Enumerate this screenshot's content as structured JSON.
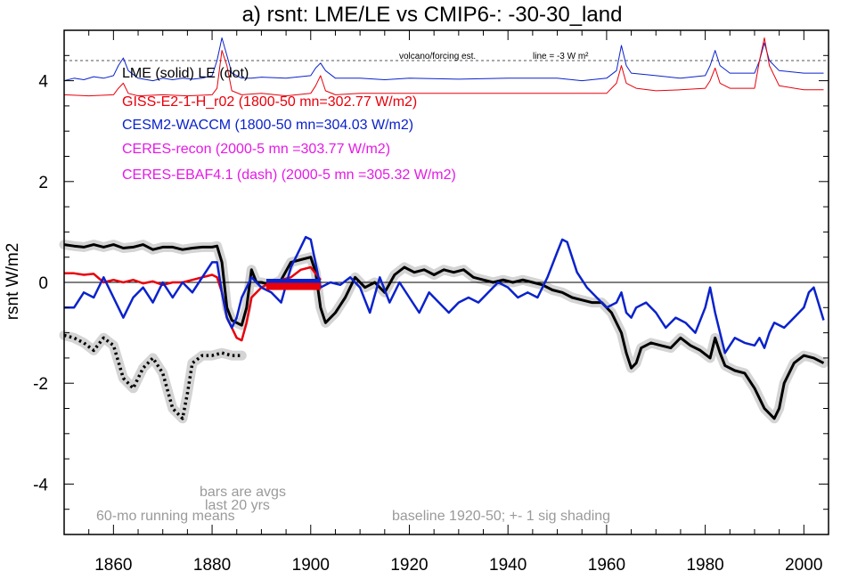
{
  "chart_data": {
    "type": "line",
    "title": "a) rsnt: LME/LE vs CMIP6-: -30-30_land",
    "ylabel": "rsnt W/m2",
    "xlim": [
      1850,
      2005
    ],
    "ylim": [
      -5,
      5
    ],
    "xticks": [
      1860,
      1880,
      1900,
      1920,
      1940,
      1960,
      1980,
      2000
    ],
    "yticks": [
      4,
      2,
      0,
      -2,
      -4
    ],
    "zero_line": 0,
    "dashed_line_y": 4.4,
    "legend": [
      {
        "text": "LME (solid)   LE (dot)",
        "color": "#000000"
      },
      {
        "text": "GISS-E2-1-H_r02 (1800-50 mn=302.77 W/m2)",
        "color": "#e8000b"
      },
      {
        "text": "CESM2-WACCM (1800-50 mn=304.03 W/m2)",
        "color": "#0a22cc"
      },
      {
        "text": "CERES-recon (2000-5 mn =303.77 W/m2)",
        "color": "#e619e6"
      },
      {
        "text": "CERES-EBAF4.1 (dash) (2000-5 mn =305.32 W/m2)",
        "color": "#e619e6"
      }
    ],
    "annotations": {
      "volcano": "volcano/forcing est.",
      "line_scale": "line = -3 W m²",
      "bars1": "bars are avgs",
      "bars2": "last 20 yrs",
      "running": "60-mo running means",
      "baseline": "baseline 1920-50; +- 1 sig shading"
    },
    "series": [
      {
        "name": "LME (solid)",
        "color": "#000000",
        "width": 3,
        "shade": true,
        "x": [
          1850,
          1852,
          1854,
          1856,
          1858,
          1860,
          1862,
          1864,
          1866,
          1868,
          1870,
          1872,
          1874,
          1876,
          1878,
          1880,
          1881,
          1882,
          1883,
          1884,
          1885,
          1886,
          1887,
          1888,
          1889,
          1890,
          1892,
          1894,
          1896,
          1898,
          1900,
          1901,
          1902,
          1903,
          1905,
          1907,
          1909,
          1911,
          1913,
          1915,
          1917,
          1919,
          1921,
          1923,
          1925,
          1927,
          1929,
          1931,
          1933,
          1935,
          1937,
          1939,
          1941,
          1943,
          1945,
          1947,
          1949,
          1951,
          1953,
          1955,
          1957,
          1959,
          1961,
          1963,
          1964,
          1965,
          1966,
          1967,
          1969,
          1971,
          1973,
          1975,
          1977,
          1979,
          1981,
          1982,
          1983,
          1984,
          1986,
          1988,
          1990,
          1991,
          1992,
          1993,
          1994,
          1995,
          1996,
          1998,
          2000,
          2002,
          2004
        ],
        "y": [
          0.75,
          0.72,
          0.7,
          0.75,
          0.7,
          0.75,
          0.68,
          0.7,
          0.75,
          0.65,
          0.7,
          0.7,
          0.65,
          0.68,
          0.7,
          0.7,
          0.72,
          0.4,
          -0.5,
          -0.75,
          -0.8,
          -0.85,
          -0.5,
          0.25,
          0.0,
          0.0,
          -0.05,
          0.05,
          0.4,
          0.45,
          0.5,
          0.2,
          -0.5,
          -0.8,
          -0.6,
          -0.3,
          0.1,
          -0.1,
          0.0,
          -0.2,
          0.15,
          0.3,
          0.2,
          0.25,
          0.15,
          0.25,
          0.2,
          0.25,
          0.1,
          0.05,
          0.0,
          0.05,
          0.0,
          0.05,
          0.0,
          -0.05,
          -0.15,
          -0.2,
          -0.3,
          -0.35,
          -0.4,
          -0.4,
          -0.6,
          -1.0,
          -1.4,
          -1.7,
          -1.6,
          -1.3,
          -1.2,
          -1.25,
          -1.3,
          -1.1,
          -1.25,
          -1.35,
          -1.5,
          -1.1,
          -1.4,
          -1.65,
          -1.75,
          -1.8,
          -2.1,
          -2.3,
          -2.5,
          -2.6,
          -2.7,
          -2.5,
          -2.0,
          -1.6,
          -1.45,
          -1.5,
          -1.6
        ]
      },
      {
        "name": "LE (dot)",
        "color": "#000000",
        "width": 3,
        "dots": true,
        "shade": true,
        "x": [
          1850,
          1852,
          1854,
          1856,
          1858,
          1860,
          1862,
          1864,
          1866,
          1868,
          1870,
          1872,
          1874,
          1875,
          1876,
          1878,
          1880,
          1882,
          1884,
          1886
        ],
        "y": [
          -1.05,
          -1.1,
          -1.2,
          -1.35,
          -1.1,
          -1.25,
          -1.9,
          -2.1,
          -1.7,
          -1.5,
          -1.8,
          -2.5,
          -2.7,
          -2.2,
          -1.6,
          -1.45,
          -1.45,
          -1.4,
          -1.45,
          -1.45
        ]
      },
      {
        "name": "GISS-E2-1-H_r02",
        "color": "#e8000b",
        "width": 2.5,
        "x": [
          1850,
          1852,
          1854,
          1856,
          1858,
          1860,
          1862,
          1864,
          1866,
          1868,
          1870,
          1872,
          1874,
          1876,
          1878,
          1880,
          1881,
          1882,
          1883,
          1884,
          1885,
          1886,
          1887,
          1888,
          1890,
          1892,
          1894,
          1896,
          1898,
          1900,
          1902
        ],
        "y": [
          0.18,
          0.18,
          0.15,
          0.17,
          0.0,
          0.05,
          0.0,
          0.05,
          -0.02,
          0.02,
          -0.05,
          0.0,
          0.0,
          0.05,
          0.1,
          0.15,
          0.1,
          -0.2,
          -0.7,
          -0.9,
          -1.1,
          -1.15,
          -0.8,
          -0.3,
          -0.1,
          0.0,
          0.05,
          0.1,
          0.25,
          0.3,
          0.05
        ]
      },
      {
        "name": "CESM2-WACCM",
        "color": "#0a22cc",
        "width": 2.5,
        "x": [
          1850,
          1852,
          1854,
          1856,
          1858,
          1860,
          1862,
          1864,
          1866,
          1868,
          1870,
          1872,
          1874,
          1876,
          1878,
          1880,
          1881,
          1882,
          1883,
          1884,
          1885,
          1886,
          1888,
          1890,
          1892,
          1894,
          1896,
          1898,
          1899,
          1900,
          1902,
          1904,
          1906,
          1908,
          1910,
          1912,
          1914,
          1916,
          1918,
          1920,
          1922,
          1924,
          1926,
          1928,
          1930,
          1932,
          1934,
          1936,
          1938,
          1940,
          1942,
          1944,
          1946,
          1948,
          1950,
          1951,
          1952,
          1954,
          1956,
          1958,
          1960,
          1962,
          1963,
          1964,
          1965,
          1966,
          1968,
          1970,
          1972,
          1974,
          1976,
          1978,
          1980,
          1981,
          1982,
          1983,
          1984,
          1986,
          1988,
          1990,
          1991,
          1992,
          1993,
          1994,
          1996,
          1998,
          2000,
          2001,
          2002,
          2004
        ],
        "y": [
          -0.5,
          -0.5,
          -0.2,
          -0.3,
          0.1,
          -0.3,
          -0.7,
          -0.3,
          -0.1,
          -0.4,
          0.0,
          -0.3,
          0.0,
          -0.2,
          0.1,
          0.4,
          0.4,
          -0.2,
          -0.7,
          -0.9,
          -0.7,
          -0.3,
          0.1,
          -0.1,
          -0.2,
          -0.4,
          0.3,
          0.7,
          0.9,
          0.85,
          -0.1,
          0.0,
          -0.05,
          0.1,
          -0.1,
          -0.6,
          0.1,
          -0.4,
          0.0,
          -0.3,
          -0.6,
          -0.2,
          -0.4,
          -0.6,
          -0.4,
          -0.3,
          -0.4,
          -0.2,
          0.0,
          -0.1,
          -0.3,
          -0.2,
          -0.3,
          0.1,
          0.6,
          0.85,
          0.8,
          0.2,
          -0.1,
          -0.3,
          -0.5,
          -0.4,
          -0.2,
          -0.6,
          -0.7,
          -0.5,
          -0.4,
          -0.6,
          -0.9,
          -0.7,
          -0.8,
          -1.0,
          -0.5,
          -0.1,
          -0.6,
          -1.0,
          -1.4,
          -1.1,
          -1.2,
          -1.25,
          -1.1,
          -1.3,
          -1.0,
          -0.8,
          -0.9,
          -0.7,
          -0.5,
          -0.2,
          -0.1,
          -0.75
        ]
      },
      {
        "name": "CESM2-WACCM (top)",
        "color": "#0a22cc",
        "width": 1,
        "x": [
          1850,
          1852,
          1854,
          1856,
          1858,
          1860,
          1861,
          1862,
          1863,
          1865,
          1868,
          1870,
          1872,
          1874,
          1876,
          1878,
          1880,
          1881,
          1882,
          1883,
          1884,
          1886,
          1888,
          1890,
          1895,
          1900,
          1901,
          1902,
          1903,
          1905,
          1910,
          1915,
          1920,
          1930,
          1940,
          1950,
          1955,
          1960,
          1962,
          1963,
          1964,
          1965,
          1970,
          1975,
          1980,
          1981,
          1982,
          1983,
          1985,
          1990,
          1991,
          1992,
          1993,
          1995,
          2000,
          2004
        ],
        "y": [
          4.0,
          4.05,
          4.02,
          4.08,
          4.05,
          4.1,
          4.3,
          4.45,
          4.2,
          4.05,
          4.0,
          4.05,
          4.02,
          4.05,
          4.03,
          4.05,
          4.1,
          4.4,
          4.85,
          4.5,
          4.15,
          4.05,
          4.05,
          4.07,
          4.05,
          4.1,
          4.25,
          4.35,
          4.2,
          4.05,
          4.05,
          4.02,
          4.05,
          4.03,
          4.05,
          4.05,
          4.0,
          4.05,
          4.2,
          4.7,
          4.3,
          4.15,
          4.1,
          4.05,
          4.1,
          4.3,
          4.6,
          4.3,
          4.15,
          4.15,
          4.4,
          4.75,
          4.4,
          4.2,
          4.15,
          4.15
        ]
      },
      {
        "name": "GISS-E2-1-H_r02 (top)",
        "color": "#e8000b",
        "width": 1,
        "x": [
          1850,
          1855,
          1860,
          1861,
          1862,
          1863,
          1865,
          1870,
          1875,
          1880,
          1881,
          1882,
          1883,
          1884,
          1886,
          1890,
          1895,
          1900,
          1901,
          1902,
          1903,
          1905,
          1910,
          1920,
          1930,
          1940,
          1950,
          1960,
          1962,
          1963,
          1964,
          1966,
          1970,
          1975,
          1980,
          1981,
          1982,
          1983,
          1985,
          1990,
          1991,
          1992,
          1993,
          1995,
          2000,
          2004
        ],
        "y": [
          3.72,
          3.7,
          3.72,
          3.85,
          3.95,
          3.75,
          3.7,
          3.72,
          3.7,
          3.72,
          3.85,
          4.6,
          4.3,
          3.8,
          3.72,
          3.75,
          3.7,
          3.75,
          3.9,
          4.1,
          3.8,
          3.72,
          3.75,
          3.75,
          3.75,
          3.75,
          3.75,
          3.75,
          3.95,
          4.3,
          3.95,
          3.85,
          3.8,
          3.82,
          3.85,
          4.0,
          4.25,
          3.95,
          3.85,
          3.85,
          4.4,
          4.85,
          4.3,
          3.9,
          3.82,
          3.82
        ]
      }
    ],
    "bars": [
      {
        "x1": 1891,
        "x2": 1902,
        "y": 0.0,
        "color": "#0a22cc"
      },
      {
        "x1": 1891,
        "x2": 1902,
        "y": -0.08,
        "color": "#e8000b"
      }
    ]
  }
}
